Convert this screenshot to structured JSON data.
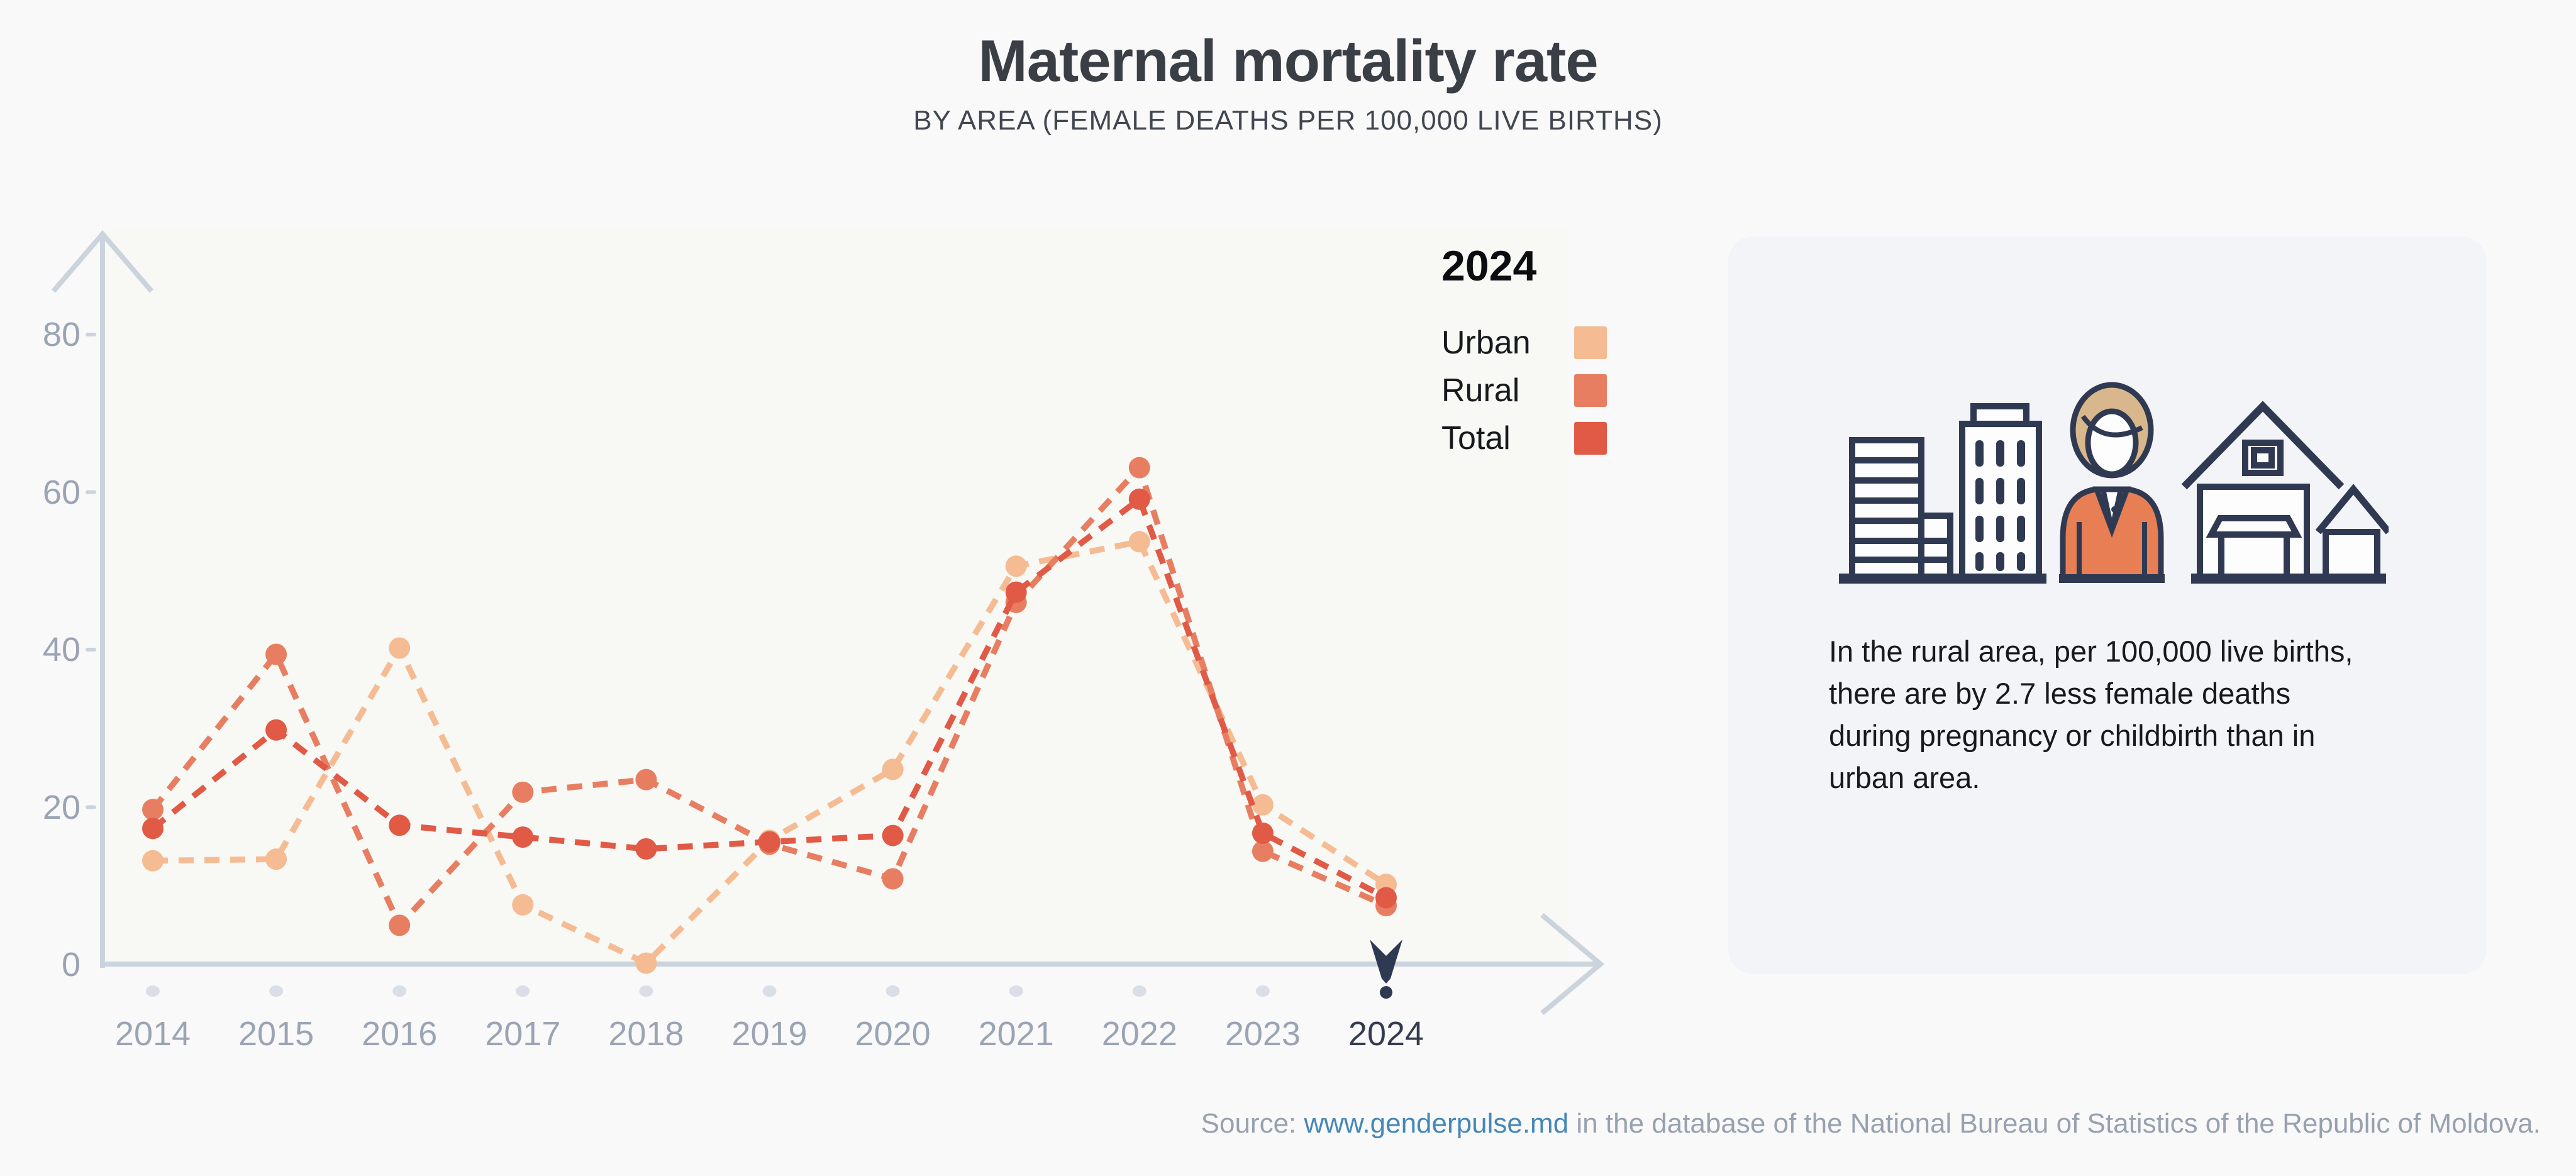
{
  "theme": {
    "page_bg": "#F9F9FA",
    "plot_bg": "#F8F8F5",
    "axis_color": "#CBD3DD",
    "tick_dot_color": "#D9DEE7",
    "axis_label_color": "#9AA4B3",
    "axis_label_dark": "#333B4D",
    "marker_color": "#2E3A52",
    "card_bg": "#F2F4F7",
    "link_color": "#4587B8",
    "source_color": "#97A1AF",
    "illustration_navy": "#2F3A52",
    "illustration_orange": "#E87E53",
    "illustration_tan": "#D9B78C",
    "illustration_white": "#FDFDFE"
  },
  "header": {
    "title": "Maternal mortality rate",
    "subtitle": "BY AREA (FEMALE DEATHS PER 100,000 LIVE BIRTHS)"
  },
  "chart_data": {
    "type": "line",
    "title": "Maternal mortality rate",
    "subtitle": "BY AREA (FEMALE DEATHS PER 100,000 LIVE BIRTHS)",
    "x": [
      "2014",
      "2015",
      "2016",
      "2017",
      "2018",
      "2019",
      "2020",
      "2021",
      "2022",
      "2023",
      "2024"
    ],
    "series": [
      {
        "name": "Urban",
        "color": "#F5BB93",
        "values": [
          13.2,
          13.4,
          40.2,
          7.6,
          0.2,
          15.8,
          24.8,
          50.6,
          53.7,
          20.3,
          10.2
        ]
      },
      {
        "name": "Rural",
        "color": "#E87E61",
        "values": [
          19.7,
          39.4,
          5.0,
          21.9,
          23.5,
          15.3,
          10.9,
          46.0,
          63.1,
          14.4,
          7.5
        ]
      },
      {
        "name": "Total",
        "color": "#E05A46",
        "values": [
          17.3,
          29.8,
          17.7,
          16.2,
          14.7,
          15.6,
          16.4,
          47.3,
          59.1,
          16.7,
          8.5
        ]
      }
    ],
    "ylim": [
      0,
      88
    ],
    "yticks": [
      0,
      20,
      40,
      60,
      80
    ],
    "xlabel": "",
    "ylabel": "",
    "grid": false,
    "line_style": "dashed",
    "legend_position": "right-top",
    "highlight_index": 10,
    "highlight_year": "2024"
  },
  "legend": {
    "heading": "2024",
    "items": [
      {
        "label": "Urban",
        "color": "#F5BB93"
      },
      {
        "label": "Rural",
        "color": "#E87E61"
      },
      {
        "label": "Total",
        "color": "#E05A46"
      }
    ]
  },
  "infocard": {
    "text": "In the rural area, per 100,000 live births,\nthere are by 2.7 less female deaths\nduring pregnancy or childbirth than in\nurban area.",
    "illustration_parts": [
      "city-buildings",
      "woman-figure",
      "houses"
    ]
  },
  "footer": {
    "prefix": "Source: ",
    "link": "www.genderpulse.md",
    "suffix": " in the database of the National Bureau of Statistics of the Republic of Moldova."
  }
}
